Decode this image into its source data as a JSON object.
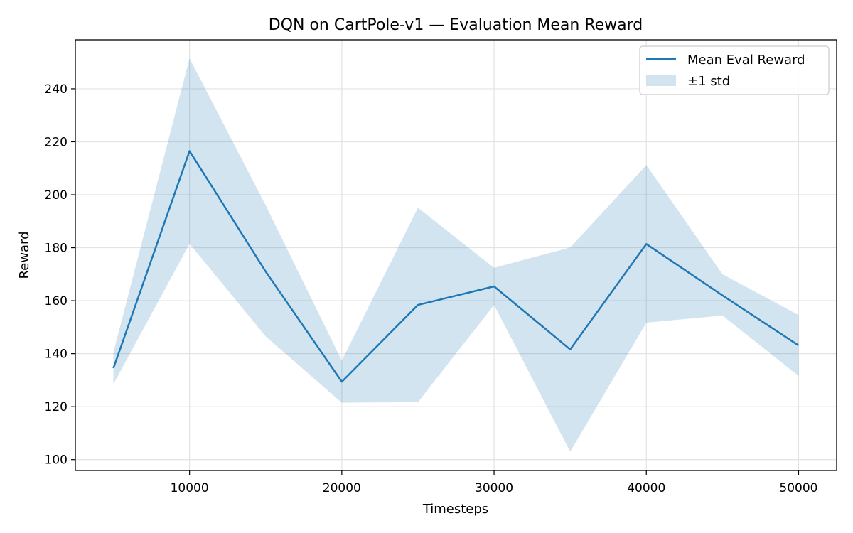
{
  "chart_data": {
    "type": "line",
    "title": "DQN on CartPole-v1 — Evaluation Mean Reward",
    "xlabel": "Timesteps",
    "ylabel": "Reward",
    "x": [
      5000,
      10000,
      15000,
      20000,
      25000,
      30000,
      35000,
      40000,
      45000,
      50000
    ],
    "series": [
      {
        "name": "Mean Eval Reward",
        "values": [
          134.5,
          216.5,
          171.0,
          129.4,
          158.4,
          165.4,
          141.6,
          181.4,
          162.0,
          143.1
        ]
      }
    ],
    "band": {
      "name": "±1 std",
      "upper": [
        140.5,
        251.5,
        196.0,
        137.4,
        195.1,
        172.4,
        180.1,
        211.2,
        170.0,
        154.6
      ],
      "lower": [
        128.5,
        181.5,
        146.5,
        121.5,
        121.7,
        158.4,
        103.0,
        151.7,
        154.4,
        131.6
      ]
    },
    "xlim": [
      2500,
      52500
    ],
    "ylim": [
      95.9,
      258.5
    ],
    "xticks": [
      10000,
      20000,
      30000,
      40000,
      50000
    ],
    "yticks": [
      100,
      120,
      140,
      160,
      180,
      200,
      220,
      240
    ],
    "grid": true,
    "legend_position": "top-right",
    "colors": {
      "line": "#1f77b4",
      "band": "#1f77b4"
    }
  }
}
